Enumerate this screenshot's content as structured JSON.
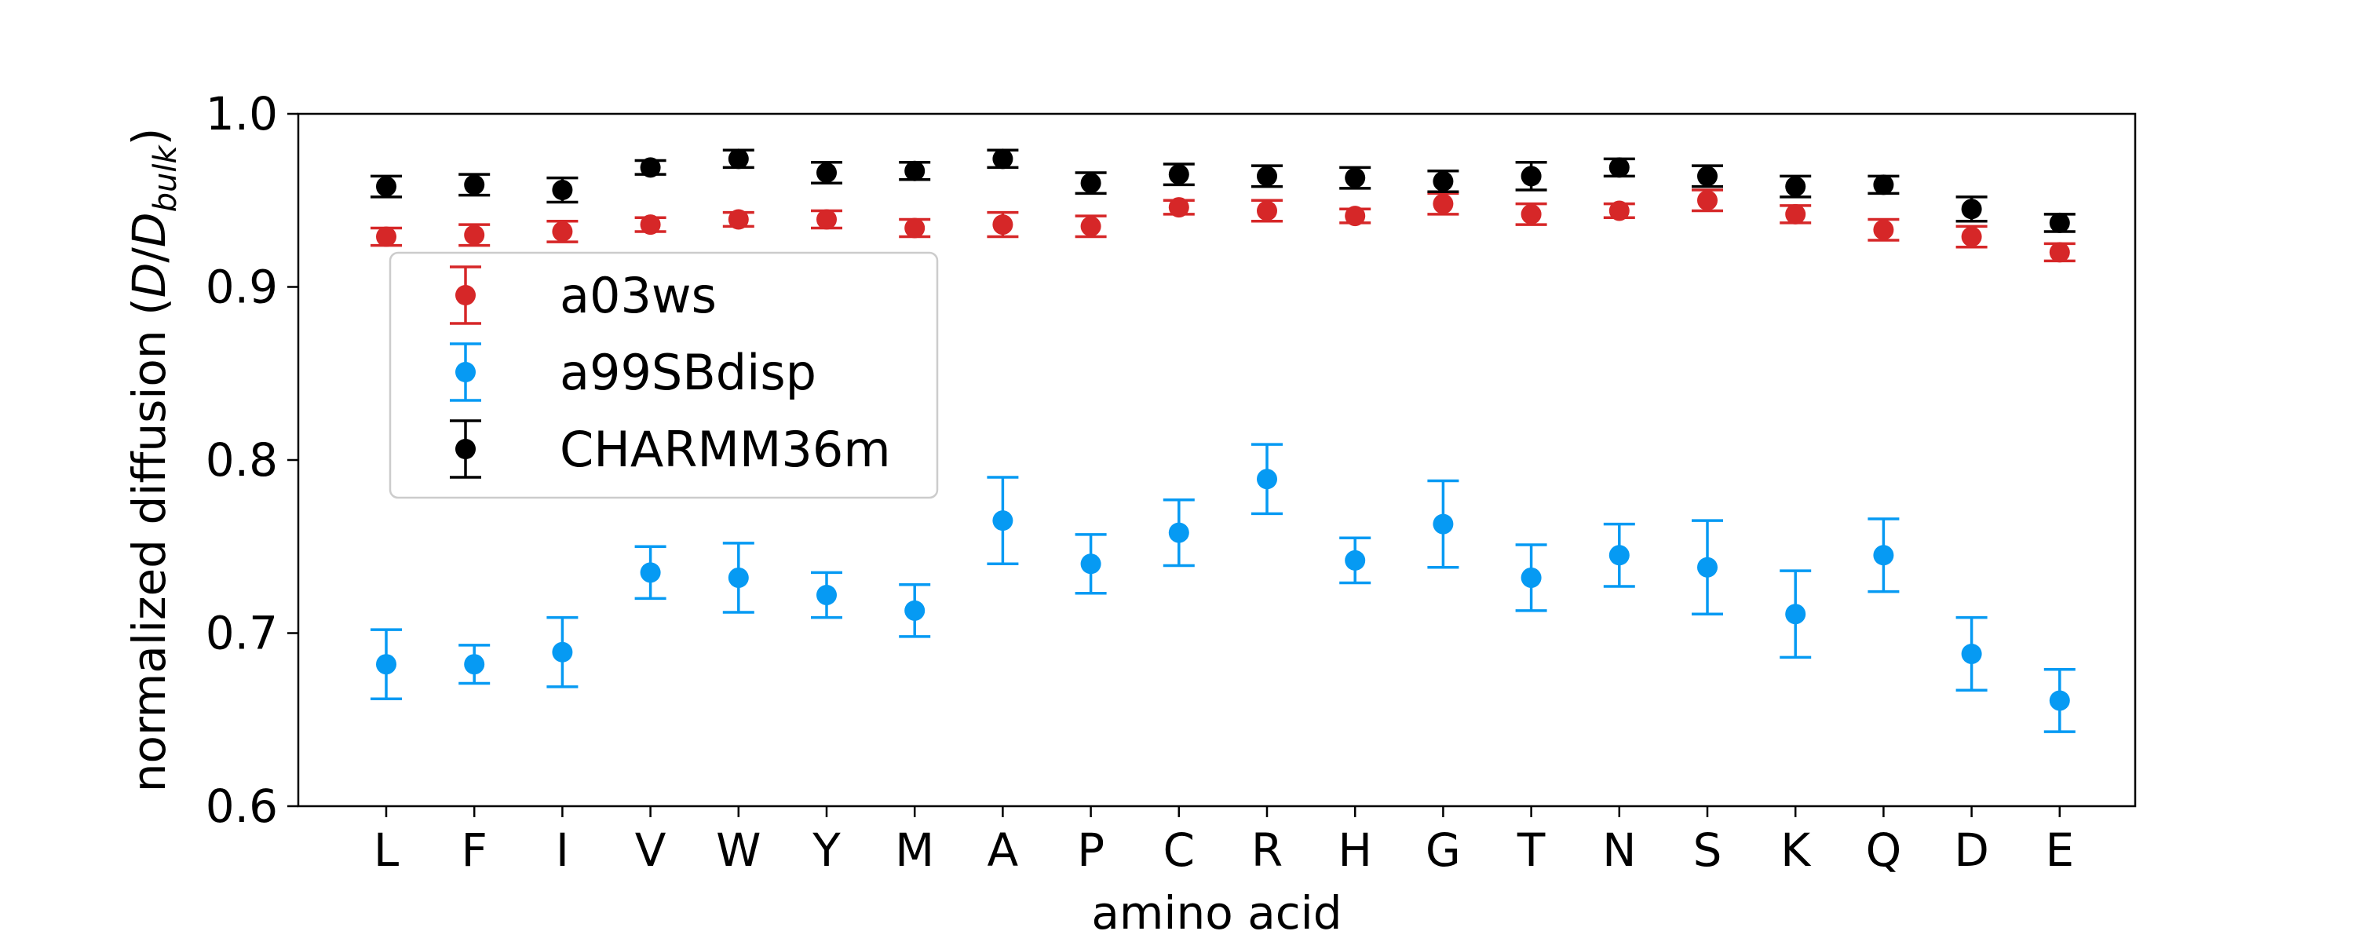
{
  "chart_data": {
    "type": "scatter",
    "xlabel": "amino acid",
    "ylabel": {
      "prefix": "normalized diffusion (",
      "D": "D",
      "slash": "/",
      "D_base": "D",
      "D_sub": "bulk",
      "suffix": ")"
    },
    "ylim": [
      0.6,
      1.0
    ],
    "yticks": [
      {
        "value": 0.6,
        "label": "0.6"
      },
      {
        "value": 0.7,
        "label": "0.7"
      },
      {
        "value": 0.8,
        "label": "0.8"
      },
      {
        "value": 0.9,
        "label": "0.9"
      },
      {
        "value": 1.0,
        "label": "1.0"
      }
    ],
    "categories": [
      "L",
      "F",
      "I",
      "V",
      "W",
      "Y",
      "M",
      "A",
      "P",
      "C",
      "R",
      "H",
      "G",
      "T",
      "N",
      "S",
      "K",
      "Q",
      "D",
      "E"
    ],
    "grid": false,
    "legend_position": "upper-left",
    "series": [
      {
        "name": "a03ws",
        "color": "#d62728",
        "values": [
          0.929,
          0.93,
          0.932,
          0.936,
          0.939,
          0.939,
          0.934,
          0.936,
          0.935,
          0.946,
          0.944,
          0.941,
          0.948,
          0.942,
          0.944,
          0.95,
          0.942,
          0.933,
          0.929,
          0.92
        ],
        "errors": [
          0.005,
          0.006,
          0.006,
          0.004,
          0.004,
          0.005,
          0.005,
          0.007,
          0.006,
          0.004,
          0.006,
          0.004,
          0.006,
          0.006,
          0.004,
          0.006,
          0.005,
          0.006,
          0.006,
          0.005
        ]
      },
      {
        "name": "a99SBdisp",
        "color": "#069af3",
        "values": [
          0.682,
          0.682,
          0.689,
          0.735,
          0.732,
          0.722,
          0.713,
          0.765,
          0.74,
          0.758,
          0.789,
          0.742,
          0.763,
          0.732,
          0.745,
          0.738,
          0.711,
          0.745,
          0.688,
          0.661
        ],
        "errors": [
          0.02,
          0.011,
          0.02,
          0.015,
          0.02,
          0.013,
          0.015,
          0.025,
          0.017,
          0.019,
          0.02,
          0.013,
          0.025,
          0.019,
          0.018,
          0.027,
          0.025,
          0.021,
          0.021,
          0.018
        ]
      },
      {
        "name": "CHARMM36m",
        "color": "#000000",
        "values": [
          0.958,
          0.959,
          0.956,
          0.969,
          0.974,
          0.966,
          0.967,
          0.974,
          0.96,
          0.965,
          0.964,
          0.963,
          0.961,
          0.964,
          0.969,
          0.964,
          0.958,
          0.959,
          0.945,
          0.937
        ],
        "errors": [
          0.006,
          0.006,
          0.007,
          0.004,
          0.005,
          0.006,
          0.005,
          0.005,
          0.006,
          0.006,
          0.006,
          0.006,
          0.006,
          0.008,
          0.005,
          0.006,
          0.006,
          0.005,
          0.007,
          0.005
        ]
      }
    ]
  }
}
